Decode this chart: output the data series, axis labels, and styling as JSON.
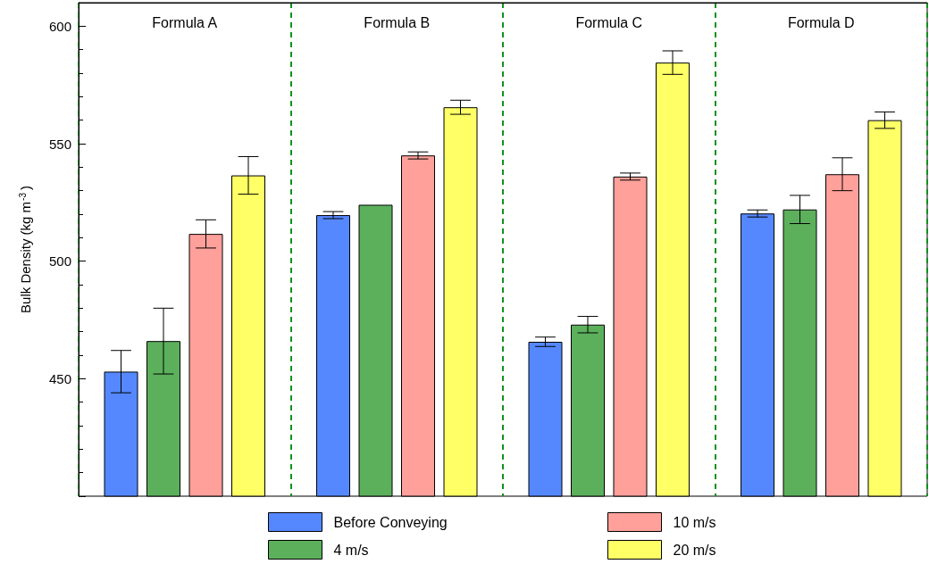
{
  "chart_data": {
    "type": "bar",
    "ylabel": "Bulk Density (kg m$^{-3}$)",
    "categories": [
      "Formula A",
      "Formula B",
      "Formula C",
      "Formula D"
    ],
    "series": [
      {
        "name": "Before Conveying",
        "color": "#5588ff",
        "values": [
          453,
          519.6,
          465.7,
          520.3
        ],
        "errors": [
          9,
          1.5,
          2,
          1.5
        ]
      },
      {
        "name": "4 m/s",
        "color": "#5cb05c",
        "values": [
          466,
          524,
          473,
          522
        ],
        "errors": [
          14,
          null,
          3.5,
          6
        ]
      },
      {
        "name": "10 m/s",
        "color": "#ffa09a",
        "values": [
          511.6,
          545,
          536,
          537
        ],
        "errors": [
          6,
          1.5,
          1.5,
          7
        ]
      },
      {
        "name": "20 m/s",
        "color": "#ffff66",
        "values": [
          536.5,
          565.5,
          584.5,
          560
        ],
        "errors": [
          8,
          3,
          5,
          3.5
        ]
      }
    ],
    "ylim": [
      400,
      610
    ],
    "yticks": [
      {
        "value": 400,
        "label": null
      },
      450,
      500,
      550,
      600
    ],
    "grid": "x",
    "legend": "bottom"
  }
}
